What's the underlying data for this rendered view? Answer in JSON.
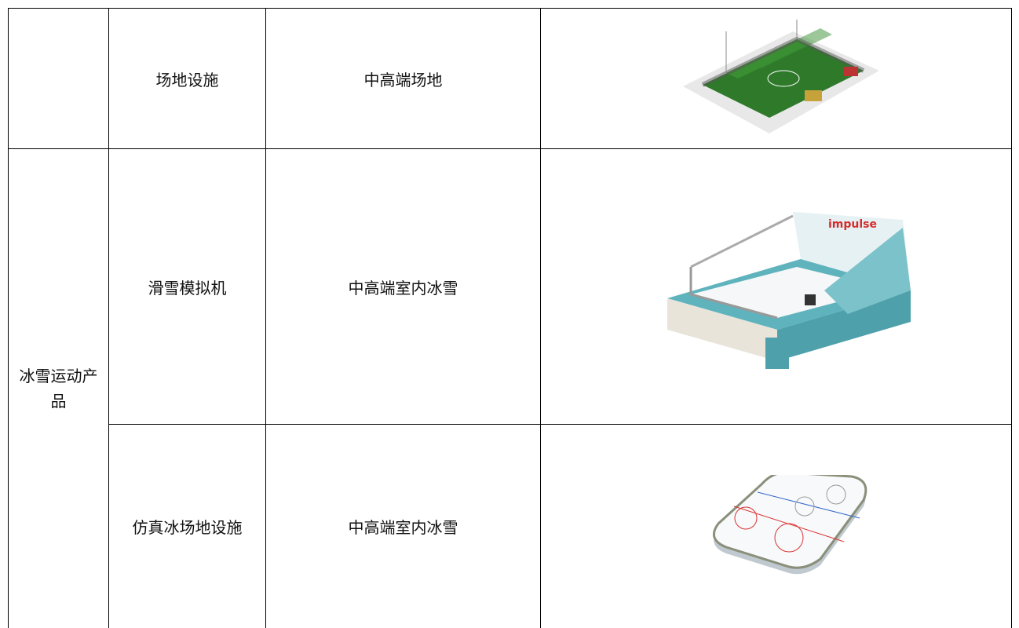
{
  "table": {
    "group": "冰雪运动产品",
    "rows": [
      {
        "item": "场地设施",
        "tier": "中高端场地"
      },
      {
        "item": "滑雪模拟机",
        "tier": "中高端室内冰雪",
        "brand": "impulse"
      },
      {
        "item": "仿真冰场地设施",
        "tier": "中高端室内冰雪"
      }
    ]
  }
}
